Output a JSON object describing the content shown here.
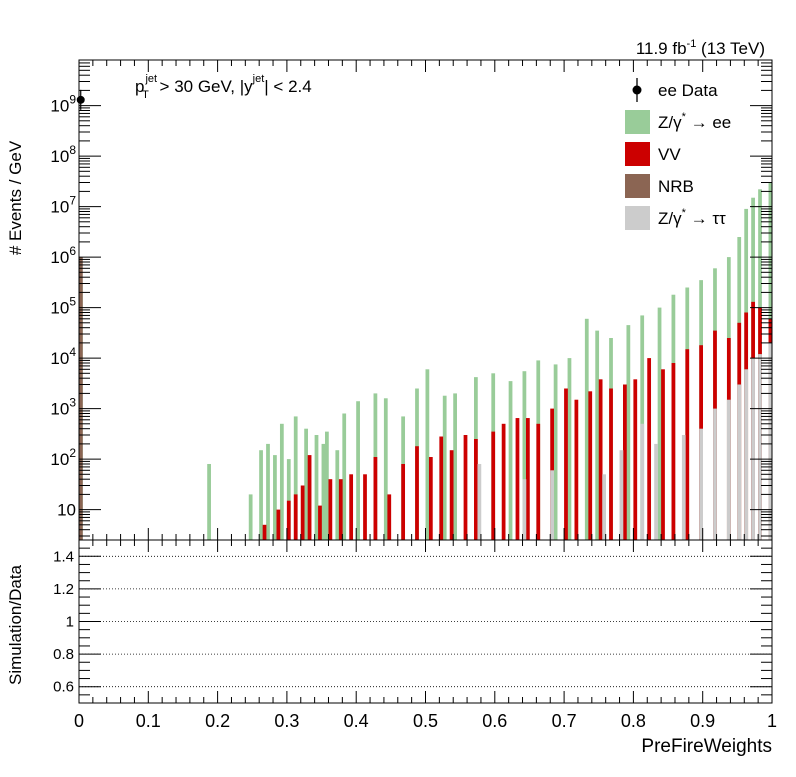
{
  "chart_data": {
    "type": "bar",
    "lumi_label": {
      "pre": "11.9 fb",
      "sup": "-1",
      "post": " (13 TeV)"
    },
    "cut_label": {
      "p": "p",
      "p_sup": "jet",
      "p_sub": "T",
      "mid": " > 30 GeV,  |y",
      "y_sup": "jet",
      "tail": "| < 2.4"
    },
    "xlabel": "PreFireWeights",
    "ylabel": "# Events / GeV",
    "ratio_ylabel": "Simulation/Data",
    "xlim": [
      0,
      1
    ],
    "ylim_log": [
      2.5,
      8000000000
    ],
    "ratio_ylim": [
      0.5,
      1.5
    ],
    "x_ticks": [
      "0",
      "0.1",
      "0.2",
      "0.3",
      "0.4",
      "0.5",
      "0.6",
      "0.7",
      "0.8",
      "0.9",
      "1"
    ],
    "y_ticks": [
      {
        "value": 10,
        "mant": "10",
        "exp": ""
      },
      {
        "value": 100,
        "mant": "10",
        "exp": "2"
      },
      {
        "value": 1000,
        "mant": "10",
        "exp": "3"
      },
      {
        "value": 10000,
        "mant": "10",
        "exp": "4"
      },
      {
        "value": 100000,
        "mant": "10",
        "exp": "5"
      },
      {
        "value": 1000000,
        "mant": "10",
        "exp": "6"
      },
      {
        "value": 10000000,
        "mant": "10",
        "exp": "7"
      },
      {
        "value": 100000000,
        "mant": "10",
        "exp": "8"
      },
      {
        "value": 1000000000,
        "mant": "10",
        "exp": "9"
      }
    ],
    "ratio_ticks": [
      "0.6",
      "0.8",
      "1",
      "1.2",
      "1.4"
    ],
    "ratio_tick_values": [
      0.6,
      0.8,
      1.0,
      1.2,
      1.4
    ],
    "n_bins": 200,
    "legend_position": "top-right",
    "legend": [
      {
        "key": "data",
        "label": "ee Data",
        "type": "marker",
        "color": "#000000"
      },
      {
        "key": "zee",
        "label": "Z/γ",
        "sup": "*",
        "tail": " → ee",
        "type": "box",
        "color": "#99cc99"
      },
      {
        "key": "vv",
        "label": "VV",
        "type": "box",
        "color": "#cc0000"
      },
      {
        "key": "nrb",
        "label": "NRB",
        "type": "box",
        "color": "#8b6553"
      },
      {
        "key": "ztt",
        "label": "Z/γ",
        "sup": "*",
        "tail": " → ττ",
        "type": "box",
        "color": "#cccccc"
      }
    ],
    "data_points": [
      {
        "x": 0.0025,
        "y": 1300000000
      }
    ],
    "series": [
      {
        "key": "zee",
        "name": "Z/γ* → ee",
        "color": "#99cc99",
        "points": [
          [
            0.0025,
            300000
          ],
          [
            0.1875,
            80
          ],
          [
            0.2475,
            20
          ],
          [
            0.2625,
            150
          ],
          [
            0.2725,
            200
          ],
          [
            0.2825,
            120
          ],
          [
            0.2925,
            500
          ],
          [
            0.3025,
            100
          ],
          [
            0.3125,
            700
          ],
          [
            0.3275,
            400
          ],
          [
            0.3425,
            300
          ],
          [
            0.3525,
            200
          ],
          [
            0.3575,
            350
          ],
          [
            0.3725,
            150
          ],
          [
            0.3825,
            800
          ],
          [
            0.4025,
            1400
          ],
          [
            0.4275,
            2000
          ],
          [
            0.4425,
            1600
          ],
          [
            0.4675,
            700
          ],
          [
            0.4875,
            2500
          ],
          [
            0.5025,
            6000
          ],
          [
            0.5275,
            1800
          ],
          [
            0.5425,
            2000
          ],
          [
            0.5725,
            4200
          ],
          [
            0.5975,
            5000
          ],
          [
            0.6225,
            3500
          ],
          [
            0.6425,
            5500
          ],
          [
            0.6625,
            9000
          ],
          [
            0.6875,
            7500
          ],
          [
            0.7075,
            10000
          ],
          [
            0.7325,
            60000
          ],
          [
            0.7475,
            35000
          ],
          [
            0.7675,
            25000
          ],
          [
            0.7925,
            45000
          ],
          [
            0.8125,
            70000
          ],
          [
            0.8375,
            100000
          ],
          [
            0.8575,
            180000
          ],
          [
            0.8775,
            250000
          ],
          [
            0.8975,
            350000
          ],
          [
            0.9175,
            600000
          ],
          [
            0.9375,
            1000000
          ],
          [
            0.9525,
            2500000
          ],
          [
            0.9625,
            9000000
          ],
          [
            0.9725,
            15000000
          ],
          [
            0.9825,
            22000000
          ],
          [
            0.9975,
            30000000
          ]
        ]
      },
      {
        "key": "vv",
        "name": "VV",
        "color": "#cc0000",
        "points": [
          [
            0.2675,
            5
          ],
          [
            0.2875,
            10
          ],
          [
            0.3025,
            15
          ],
          [
            0.3125,
            20
          ],
          [
            0.3225,
            30
          ],
          [
            0.3325,
            120
          ],
          [
            0.3475,
            12
          ],
          [
            0.3625,
            40
          ],
          [
            0.3775,
            40
          ],
          [
            0.3925,
            50
          ],
          [
            0.4125,
            50
          ],
          [
            0.4275,
            110
          ],
          [
            0.4475,
            20
          ],
          [
            0.4675,
            80
          ],
          [
            0.4875,
            180
          ],
          [
            0.5075,
            110
          ],
          [
            0.5225,
            280
          ],
          [
            0.5375,
            150
          ],
          [
            0.5575,
            300
          ],
          [
            0.5725,
            250
          ],
          [
            0.5975,
            350
          ],
          [
            0.6125,
            500
          ],
          [
            0.6325,
            650
          ],
          [
            0.6475,
            650
          ],
          [
            0.6625,
            500
          ],
          [
            0.6825,
            1000
          ],
          [
            0.7025,
            2500
          ],
          [
            0.7175,
            1500
          ],
          [
            0.7375,
            2200
          ],
          [
            0.7525,
            3800
          ],
          [
            0.7675,
            2500
          ],
          [
            0.7875,
            3000
          ],
          [
            0.8025,
            3800
          ],
          [
            0.8225,
            10000
          ],
          [
            0.8425,
            6000
          ],
          [
            0.8575,
            8000
          ],
          [
            0.8775,
            15000
          ],
          [
            0.8975,
            18000
          ],
          [
            0.9175,
            35000
          ],
          [
            0.9375,
            25000
          ],
          [
            0.9525,
            50000
          ],
          [
            0.9625,
            80000
          ],
          [
            0.9725,
            130000
          ],
          [
            0.9825,
            100000
          ],
          [
            0.9975,
            60000
          ]
        ]
      },
      {
        "key": "nrb",
        "name": "NRB",
        "color": "#8b6553",
        "points": [
          [
            0.0025,
            1000000
          ]
        ]
      },
      {
        "key": "ztt",
        "name": "Z/γ* → ττ",
        "color": "#cccccc",
        "points": [
          [
            0.5775,
            80
          ],
          [
            0.6425,
            40
          ],
          [
            0.6825,
            60
          ],
          [
            0.7575,
            50
          ],
          [
            0.7825,
            150
          ],
          [
            0.8125,
            500
          ],
          [
            0.8325,
            200
          ],
          [
            0.8725,
            300
          ],
          [
            0.8975,
            400
          ],
          [
            0.9175,
            1000
          ],
          [
            0.9375,
            1500
          ],
          [
            0.9525,
            3000
          ],
          [
            0.9625,
            6000
          ],
          [
            0.9725,
            10000
          ],
          [
            0.9825,
            12000
          ],
          [
            0.9975,
            20000
          ]
        ]
      }
    ]
  }
}
